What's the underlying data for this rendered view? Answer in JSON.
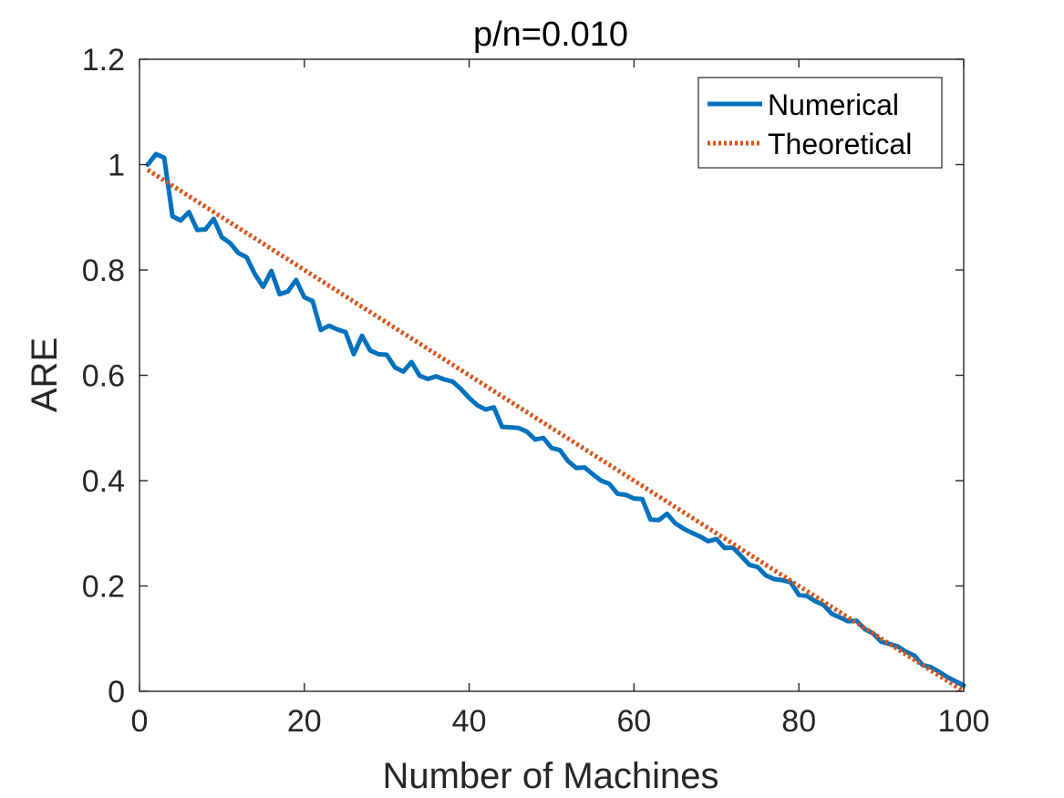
{
  "chart_data": {
    "type": "line",
    "title": "p/n=0.010",
    "xlabel": "Number of Machines",
    "ylabel": "ARE",
    "xlim": [
      0,
      100
    ],
    "ylim": [
      0,
      1.2
    ],
    "xticks": [
      0,
      20,
      40,
      60,
      80,
      100
    ],
    "yticks": [
      0,
      0.2,
      0.4,
      0.6,
      0.8,
      1,
      1.2
    ],
    "xtick_labels": [
      "0",
      "20",
      "40",
      "60",
      "80",
      "100"
    ],
    "ytick_labels": [
      "0",
      "0.2",
      "0.4",
      "0.6",
      "0.8",
      "1",
      "1.2"
    ],
    "grid": false,
    "box": true,
    "legend": {
      "placement": "top-right",
      "entries": [
        "Numerical",
        "Theoretical"
      ]
    },
    "series": [
      {
        "name": "Numerical",
        "color": "#0072BD",
        "style": "solid",
        "x": [
          1,
          2,
          3,
          4,
          5,
          6,
          7,
          8,
          9,
          10,
          11,
          12,
          13,
          14,
          15,
          16,
          17,
          18,
          19,
          20,
          21,
          22,
          23,
          24,
          25,
          26,
          27,
          28,
          29,
          30,
          31,
          32,
          33,
          34,
          35,
          36,
          37,
          38,
          39,
          40,
          41,
          42,
          43,
          44,
          45,
          46,
          47,
          48,
          49,
          50,
          51,
          52,
          53,
          54,
          55,
          56,
          57,
          58,
          59,
          60,
          61,
          62,
          63,
          64,
          65,
          66,
          67,
          68,
          69,
          70,
          71,
          72,
          73,
          74,
          75,
          76,
          77,
          78,
          79,
          80,
          81,
          82,
          83,
          84,
          85,
          86,
          87,
          88,
          89,
          90,
          91,
          92,
          93,
          94,
          95,
          96,
          97,
          98,
          99,
          100
        ],
        "y": [
          1.0,
          1.02,
          1.013,
          0.902,
          0.894,
          0.91,
          0.876,
          0.877,
          0.897,
          0.862,
          0.851,
          0.832,
          0.824,
          0.792,
          0.768,
          0.798,
          0.754,
          0.759,
          0.781,
          0.748,
          0.741,
          0.686,
          0.694,
          0.687,
          0.682,
          0.64,
          0.675,
          0.647,
          0.64,
          0.639,
          0.615,
          0.607,
          0.625,
          0.599,
          0.593,
          0.598,
          0.592,
          0.588,
          0.574,
          0.557,
          0.543,
          0.535,
          0.539,
          0.502,
          0.501,
          0.5,
          0.493,
          0.478,
          0.481,
          0.462,
          0.458,
          0.437,
          0.424,
          0.425,
          0.412,
          0.4,
          0.394,
          0.375,
          0.373,
          0.366,
          0.365,
          0.326,
          0.325,
          0.337,
          0.319,
          0.309,
          0.301,
          0.294,
          0.285,
          0.289,
          0.272,
          0.273,
          0.257,
          0.24,
          0.236,
          0.22,
          0.213,
          0.211,
          0.207,
          0.183,
          0.181,
          0.171,
          0.164,
          0.147,
          0.14,
          0.133,
          0.134,
          0.118,
          0.11,
          0.094,
          0.09,
          0.085,
          0.075,
          0.068,
          0.05,
          0.046,
          0.037,
          0.027,
          0.019,
          0.011
        ]
      },
      {
        "name": "Theoretical",
        "color": "#D95319",
        "style": "dotted",
        "x": [
          1,
          100
        ],
        "y": [
          0.99,
          0.0
        ]
      }
    ]
  }
}
